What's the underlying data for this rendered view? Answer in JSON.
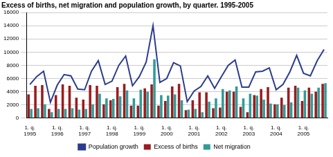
{
  "chart_data": {
    "type": "bar",
    "title": "Excess of births, net migration and population growth, by quarter. 1995-2005",
    "categories": [
      "1. q. 1995",
      null,
      null,
      null,
      "1. q. 1996",
      null,
      null,
      null,
      "1. q. 1997",
      null,
      null,
      null,
      "1. q. 1998",
      null,
      null,
      null,
      "1. q. 1999",
      null,
      null,
      null,
      "1. q. 2000",
      null,
      null,
      null,
      "1. q. 2001",
      null,
      null,
      null,
      "1. q. 2002",
      null,
      null,
      null,
      "1. q. 2003",
      null,
      null,
      null,
      "1. q. 2004",
      null,
      null,
      null,
      "1. q. 2005",
      null,
      null,
      null
    ],
    "series": [
      {
        "name": "Excess of births",
        "type": "bar",
        "color": "#9b1c1f",
        "values": [
          3600,
          4900,
          5000,
          1400,
          3500,
          5100,
          4900,
          3100,
          2800,
          5000,
          4900,
          2100,
          2700,
          4700,
          5200,
          1900,
          1900,
          4500,
          5100,
          1900,
          2600,
          4800,
          5200,
          1200,
          2700,
          3900,
          3900,
          1500,
          1600,
          4000,
          4000,
          1700,
          900,
          3500,
          4400,
          4700,
          2100,
          3100,
          4600,
          4900,
          2600,
          4600,
          4000,
          5200
        ]
      },
      {
        "name": "Net migration",
        "type": "bar",
        "color": "#2f9c98",
        "values": [
          1400,
          1500,
          2100,
          900,
          1400,
          1400,
          1500,
          1300,
          1400,
          2100,
          3700,
          3000,
          2900,
          3300,
          4200,
          3000,
          4300,
          4000,
          8900,
          3500,
          3400,
          3600,
          2700,
          1300,
          1400,
          900,
          2500,
          3000,
          4400,
          4200,
          4800,
          3000,
          3700,
          3400,
          2800,
          2200,
          2100,
          2000,
          2400,
          4600,
          4200,
          3700,
          4600,
          5300
        ]
      },
      {
        "name": "Population growth",
        "type": "line",
        "color": "#2b3c8f",
        "values": [
          5100,
          6300,
          7100,
          2400,
          5000,
          6600,
          6400,
          4400,
          4300,
          7100,
          8700,
          5100,
          5600,
          8000,
          9400,
          4900,
          6300,
          8500,
          14000,
          5400,
          6000,
          8400,
          7900,
          2500,
          4100,
          4800,
          6400,
          4500,
          6300,
          8000,
          8800,
          4700,
          4700,
          7000,
          7100,
          7600,
          4300,
          5100,
          7000,
          9500,
          6800,
          6400,
          8700,
          10400
        ]
      }
    ],
    "ylim": [
      0,
      16000
    ],
    "yticks": [
      0,
      2000,
      4000,
      6000,
      8000,
      10000,
      12000,
      14000,
      16000
    ],
    "grid": true,
    "legend": "bottom"
  }
}
